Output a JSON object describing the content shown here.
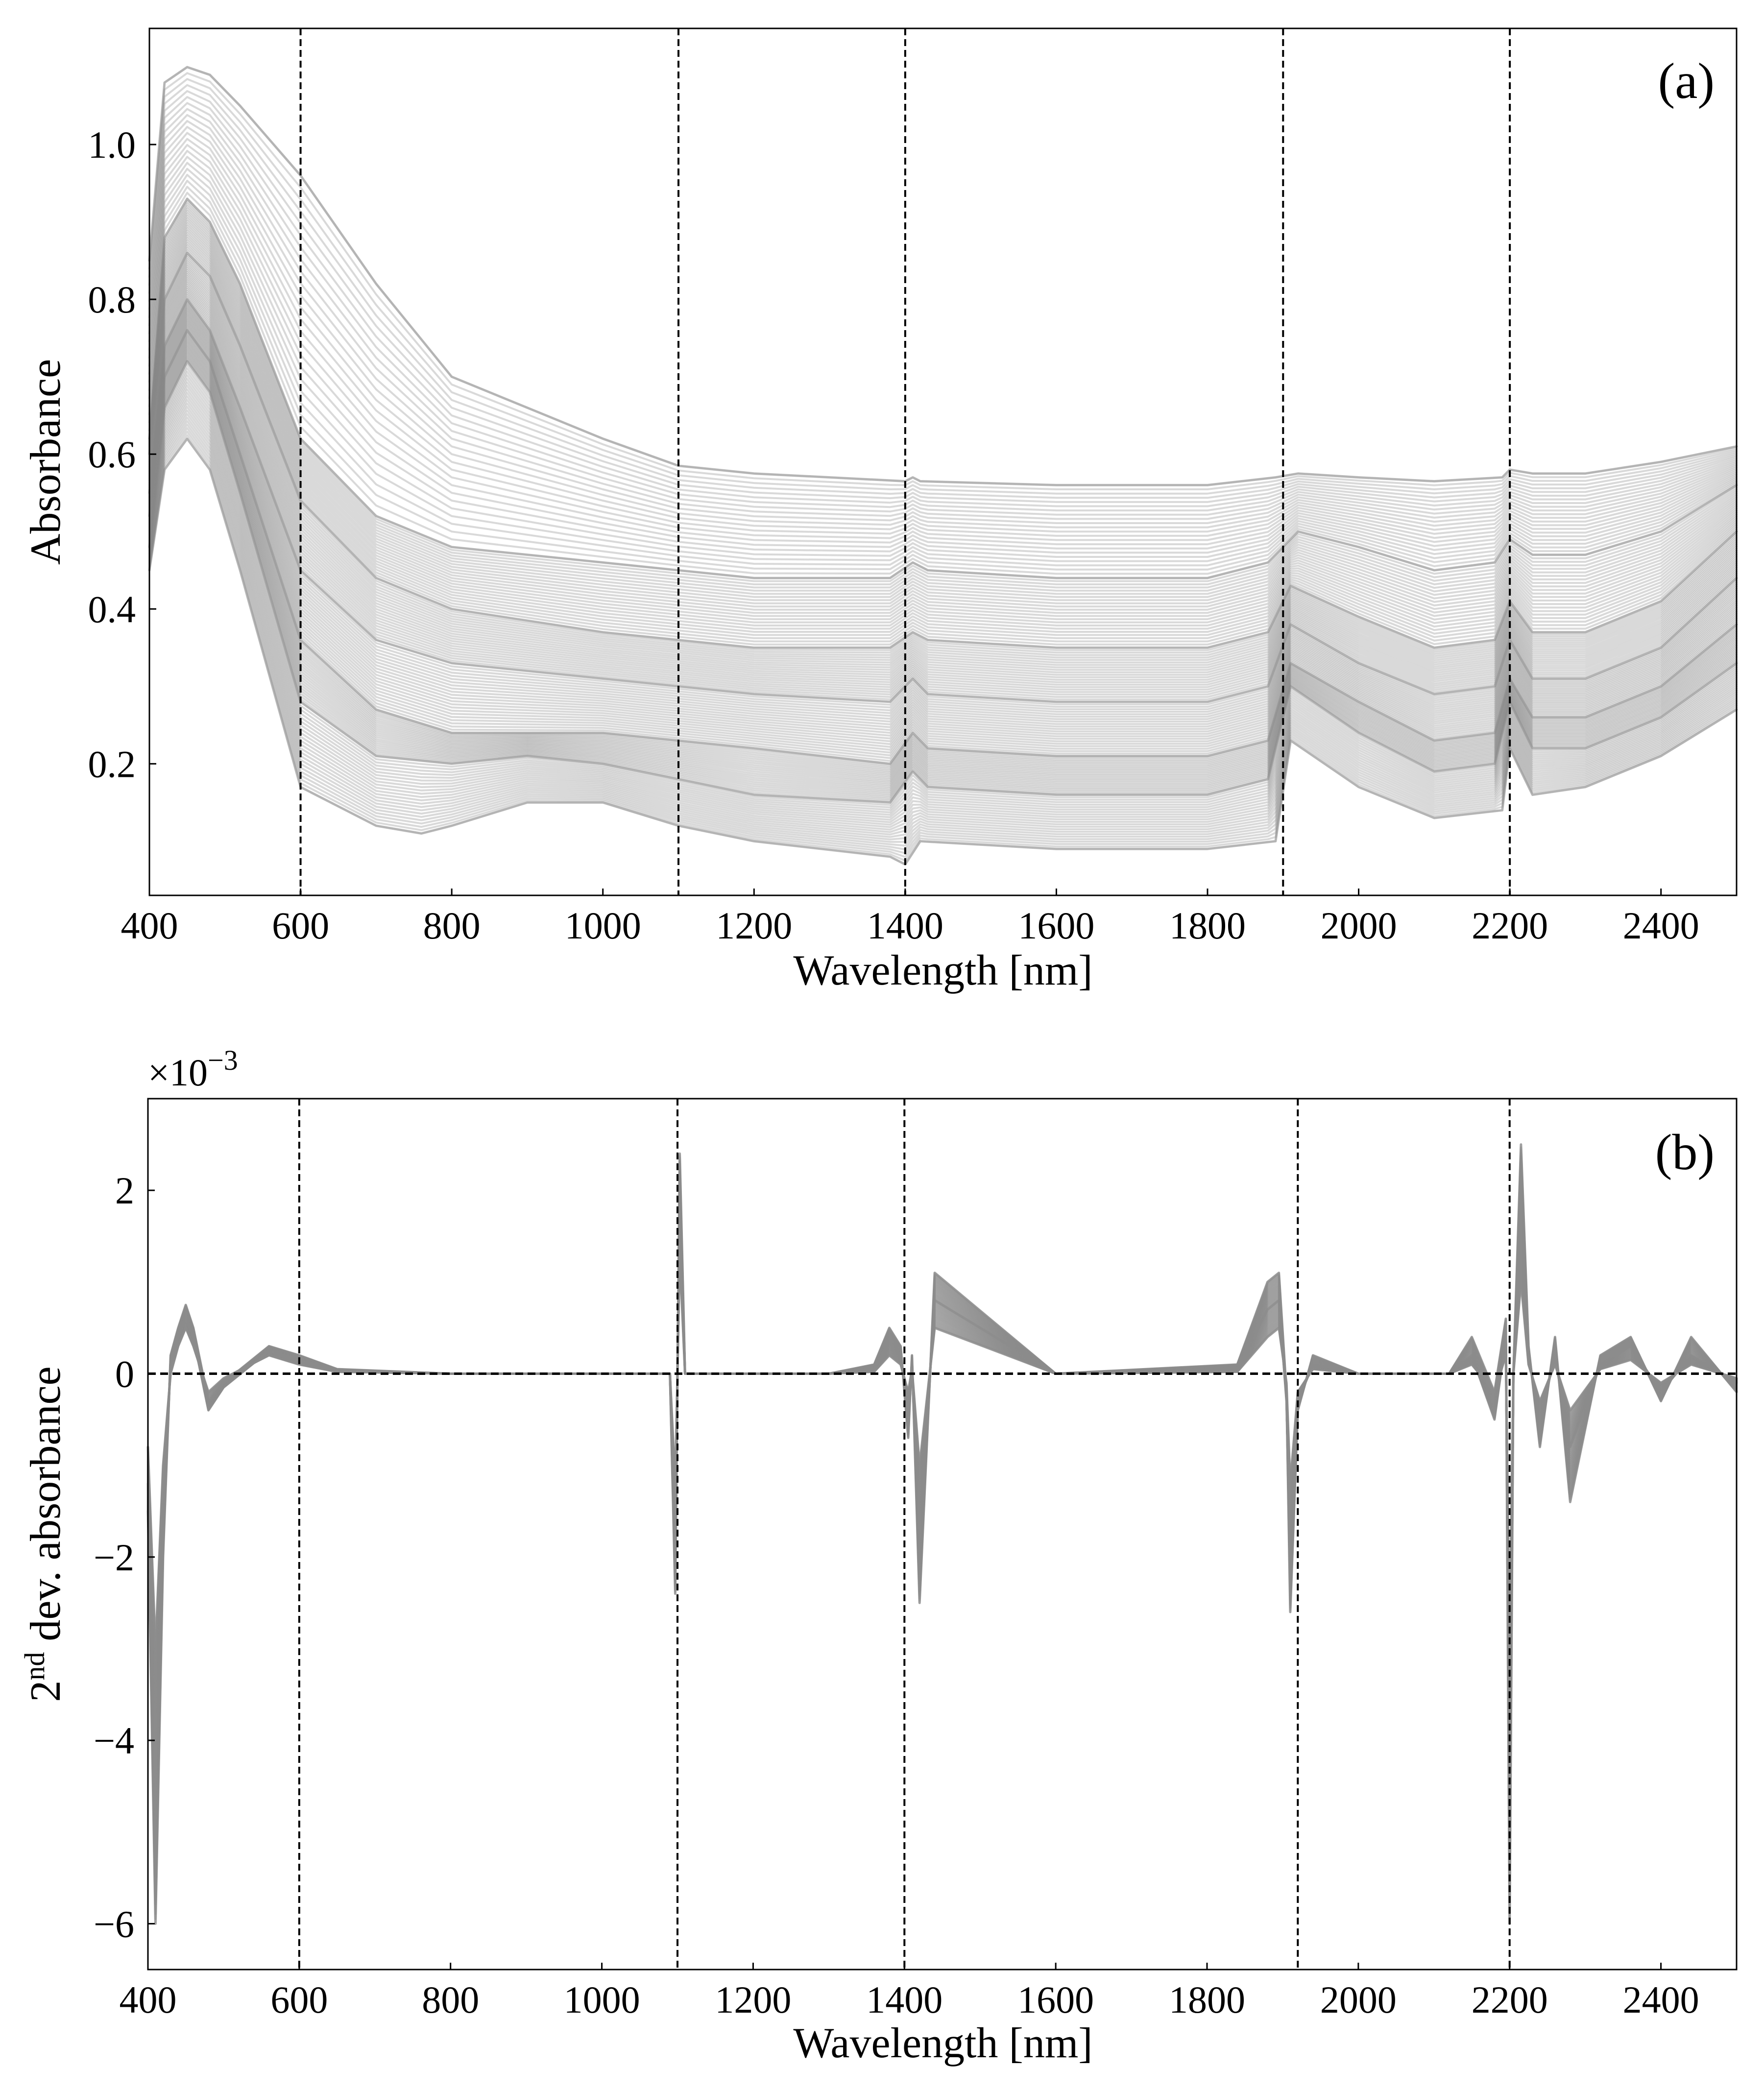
{
  "chart_data": [
    {
      "panel": "(a)",
      "type": "line",
      "xlabel": "Wavelength [nm]",
      "ylabel": "Absorbance",
      "xlim": [
        400,
        2500
      ],
      "ylim": [
        0.03,
        1.15
      ],
      "xticks": [
        400,
        600,
        800,
        1000,
        1200,
        1400,
        1600,
        1800,
        2000,
        2200,
        2400
      ],
      "yticks": [
        0.2,
        0.4,
        0.6,
        0.8,
        1.0
      ],
      "ytick_labels": [
        "0.2",
        "0.4",
        "0.6",
        "0.8",
        "1.0"
      ],
      "vlines": [
        600,
        1100,
        1400,
        1900,
        2200
      ],
      "line_color": "#888888",
      "series_note": "~150 overlapping gray absorbance spectra",
      "representative_series": [
        {
          "name": "highest",
          "x": [
            400,
            420,
            450,
            480,
            520,
            600,
            700,
            800,
            1000,
            1100,
            1200,
            1400,
            1410,
            1420,
            1600,
            1800,
            1890,
            1920,
            2000,
            2100,
            2190,
            2200,
            2230,
            2300,
            2400,
            2500
          ],
          "values": [
            0.85,
            1.08,
            1.1,
            1.09,
            1.05,
            0.96,
            0.82,
            0.7,
            0.62,
            0.585,
            0.575,
            0.565,
            0.57,
            0.565,
            0.56,
            0.56,
            0.57,
            0.575,
            0.57,
            0.565,
            0.57,
            0.58,
            0.575,
            0.575,
            0.59,
            0.61
          ]
        },
        {
          "name": "upper",
          "x": [
            400,
            420,
            450,
            480,
            520,
            600,
            700,
            800,
            1000,
            1100,
            1200,
            1380,
            1410,
            1430,
            1600,
            1800,
            1880,
            1920,
            2000,
            2100,
            2180,
            2200,
            2230,
            2300,
            2400,
            2500
          ],
          "values": [
            0.62,
            0.88,
            0.93,
            0.9,
            0.82,
            0.62,
            0.52,
            0.48,
            0.46,
            0.45,
            0.44,
            0.44,
            0.46,
            0.45,
            0.44,
            0.44,
            0.46,
            0.5,
            0.48,
            0.45,
            0.46,
            0.49,
            0.47,
            0.47,
            0.5,
            0.56
          ]
        },
        {
          "name": "upper-mid",
          "x": [
            400,
            420,
            450,
            480,
            520,
            600,
            700,
            800,
            1000,
            1100,
            1200,
            1380,
            1410,
            1430,
            1600,
            1800,
            1880,
            1910,
            2000,
            2100,
            2180,
            2200,
            2230,
            2300,
            2400,
            2500
          ],
          "values": [
            0.6,
            0.8,
            0.86,
            0.83,
            0.74,
            0.54,
            0.44,
            0.4,
            0.37,
            0.36,
            0.35,
            0.35,
            0.37,
            0.36,
            0.35,
            0.35,
            0.37,
            0.43,
            0.39,
            0.35,
            0.36,
            0.41,
            0.37,
            0.37,
            0.41,
            0.5
          ]
        },
        {
          "name": "middle",
          "x": [
            400,
            420,
            450,
            480,
            520,
            600,
            700,
            800,
            1000,
            1100,
            1200,
            1380,
            1410,
            1430,
            1600,
            1800,
            1880,
            1910,
            2000,
            2100,
            2180,
            2200,
            2230,
            2300,
            2400,
            2500
          ],
          "values": [
            0.55,
            0.74,
            0.8,
            0.76,
            0.66,
            0.45,
            0.36,
            0.33,
            0.31,
            0.3,
            0.29,
            0.28,
            0.31,
            0.29,
            0.28,
            0.28,
            0.3,
            0.38,
            0.33,
            0.29,
            0.3,
            0.36,
            0.31,
            0.31,
            0.35,
            0.44
          ]
        },
        {
          "name": "lower-mid",
          "x": [
            400,
            420,
            450,
            480,
            520,
            600,
            700,
            800,
            1000,
            1100,
            1200,
            1380,
            1410,
            1430,
            1600,
            1800,
            1880,
            1910,
            2000,
            2100,
            2180,
            2200,
            2230,
            2300,
            2400,
            2500
          ],
          "values": [
            0.52,
            0.7,
            0.76,
            0.72,
            0.6,
            0.36,
            0.27,
            0.24,
            0.24,
            0.23,
            0.22,
            0.2,
            0.24,
            0.22,
            0.21,
            0.21,
            0.23,
            0.33,
            0.28,
            0.23,
            0.24,
            0.31,
            0.26,
            0.26,
            0.3,
            0.38
          ]
        },
        {
          "name": "low",
          "x": [
            400,
            420,
            450,
            480,
            520,
            600,
            700,
            800,
            900,
            1000,
            1100,
            1200,
            1380,
            1410,
            1430,
            1600,
            1800,
            1880,
            1910,
            2000,
            2100,
            2180,
            2200,
            2230,
            2300,
            2400,
            2500
          ],
          "values": [
            0.48,
            0.66,
            0.72,
            0.68,
            0.55,
            0.28,
            0.21,
            0.2,
            0.21,
            0.2,
            0.18,
            0.16,
            0.15,
            0.19,
            0.17,
            0.16,
            0.16,
            0.18,
            0.3,
            0.24,
            0.19,
            0.2,
            0.28,
            0.22,
            0.22,
            0.26,
            0.33
          ]
        },
        {
          "name": "lowest",
          "x": [
            400,
            420,
            450,
            480,
            520,
            600,
            700,
            760,
            800,
            900,
            1000,
            1100,
            1200,
            1380,
            1400,
            1420,
            1600,
            1800,
            1890,
            1910,
            2000,
            2100,
            2190,
            2200,
            2230,
            2300,
            2400,
            2500
          ],
          "values": [
            0.45,
            0.58,
            0.62,
            0.58,
            0.45,
            0.17,
            0.12,
            0.11,
            0.12,
            0.15,
            0.15,
            0.12,
            0.1,
            0.08,
            0.07,
            0.1,
            0.09,
            0.09,
            0.1,
            0.23,
            0.17,
            0.13,
            0.14,
            0.22,
            0.16,
            0.17,
            0.21,
            0.27
          ]
        }
      ]
    },
    {
      "panel": "(b)",
      "type": "line",
      "xlabel": "Wavelength [nm]",
      "ylabel": "2nd dev. absorbance",
      "multiplier": "×10",
      "multiplier_exponent": "−3",
      "xlim": [
        400,
        2500
      ],
      "ylim": [
        -6.5,
        3.0
      ],
      "xticks": [
        400,
        600,
        800,
        1000,
        1200,
        1400,
        1600,
        1800,
        2000,
        2200,
        2400
      ],
      "yticks": [
        -6,
        -4,
        -2,
        0,
        2
      ],
      "ytick_labels": [
        "−6",
        "−4",
        "−2",
        "0",
        "2"
      ],
      "vlines": [
        600,
        1100,
        1400,
        1920,
        2200
      ],
      "zero_line": 0,
      "line_color": "#8c8c8c",
      "series_note": "~150 overlapping gray second-derivative spectra (units ×10^-3)",
      "representative_series": [
        {
          "name": "envelope-a",
          "x": [
            400,
            410,
            420,
            430,
            440,
            450,
            460,
            480,
            500,
            560,
            600,
            650,
            800,
            1000,
            1090,
            1097,
            1100,
            1103,
            1110,
            1300,
            1360,
            1380,
            1395,
            1405,
            1410,
            1420,
            1440,
            1600,
            1840,
            1880,
            1895,
            1905,
            1910,
            1920,
            1940,
            2000,
            2120,
            2150,
            2180,
            2195,
            2200,
            2205,
            2215,
            2225,
            2240,
            2260,
            2280,
            2320,
            2360,
            2400,
            2440,
            2480,
            2500
          ],
          "values": [
            -1.5,
            -6.0,
            -2.0,
            0.2,
            0.5,
            0.75,
            0.5,
            -0.3,
            -0.1,
            0.3,
            0.2,
            0.05,
            0.0,
            0.0,
            0.0,
            -2.4,
            0.0,
            2.4,
            0.0,
            0.0,
            0.1,
            0.5,
            0.3,
            -0.7,
            0.2,
            -2.5,
            1.1,
            0.0,
            0.1,
            1.0,
            1.1,
            -0.2,
            -2.6,
            -0.4,
            0.2,
            0.0,
            0.0,
            0.4,
            -0.2,
            0.6,
            -6.0,
            0.0,
            2.5,
            0.3,
            -0.8,
            0.4,
            -1.4,
            0.2,
            0.4,
            -0.3,
            0.4,
            0.0,
            -0.2
          ]
        },
        {
          "name": "envelope-b",
          "x": [
            400,
            410,
            420,
            430,
            440,
            450,
            460,
            480,
            500,
            560,
            600,
            650,
            800,
            1000,
            1090,
            1097,
            1100,
            1103,
            1110,
            1300,
            1360,
            1380,
            1395,
            1405,
            1410,
            1420,
            1440,
            1600,
            1840,
            1880,
            1895,
            1905,
            1910,
            1920,
            1940,
            2000,
            2120,
            2150,
            2180,
            2195,
            2200,
            2205,
            2215,
            2225,
            2240,
            2260,
            2280,
            2320,
            2360,
            2400,
            2440,
            2480,
            2500
          ],
          "values": [
            -1.2,
            -4.5,
            -1.5,
            0.1,
            0.4,
            0.6,
            0.4,
            -0.4,
            -0.15,
            0.25,
            0.15,
            0.03,
            0.0,
            0.0,
            0.0,
            -1.8,
            0.0,
            1.8,
            0.0,
            0.0,
            0.05,
            0.35,
            0.2,
            -0.4,
            0.1,
            -1.8,
            0.8,
            0.0,
            0.05,
            0.7,
            0.8,
            -0.3,
            -1.9,
            -0.3,
            0.1,
            0.0,
            0.0,
            0.2,
            -0.5,
            0.4,
            -4.5,
            0.0,
            1.6,
            0.2,
            -0.5,
            0.2,
            -0.8,
            0.1,
            0.3,
            -0.2,
            0.2,
            0.0,
            -0.1
          ]
        },
        {
          "name": "envelope-c",
          "x": [
            400,
            410,
            420,
            430,
            440,
            450,
            460,
            480,
            500,
            560,
            600,
            650,
            800,
            1000,
            1090,
            1097,
            1100,
            1103,
            1110,
            1300,
            1360,
            1380,
            1395,
            1405,
            1410,
            1420,
            1440,
            1600,
            1840,
            1880,
            1895,
            1905,
            1910,
            1920,
            1940,
            2000,
            2120,
            2150,
            2180,
            2195,
            2200,
            2205,
            2215,
            2225,
            2240,
            2260,
            2280,
            2320,
            2360,
            2400,
            2440,
            2480,
            2500
          ],
          "values": [
            -0.8,
            -3.0,
            -1.0,
            0.0,
            0.3,
            0.5,
            0.3,
            -0.2,
            -0.05,
            0.2,
            0.1,
            0.02,
            0.0,
            0.0,
            0.0,
            -1.2,
            0.0,
            1.3,
            0.0,
            0.0,
            0.02,
            0.2,
            0.1,
            -0.2,
            0.05,
            -1.0,
            0.5,
            0.0,
            0.02,
            0.4,
            0.5,
            -0.1,
            -1.2,
            -0.2,
            0.05,
            0.0,
            0.0,
            0.1,
            -0.2,
            0.2,
            -3.0,
            0.0,
            1.0,
            0.1,
            -0.3,
            0.1,
            -0.4,
            0.05,
            0.15,
            -0.1,
            0.1,
            0.0,
            -0.05
          ]
        }
      ]
    }
  ]
}
